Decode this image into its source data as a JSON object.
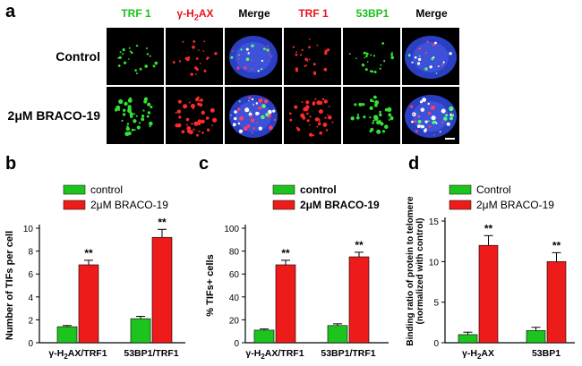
{
  "panel_a": {
    "letter": "a",
    "columns": [
      {
        "label": "TRF 1",
        "color": "#19c219"
      },
      {
        "label": "γ-H",
        "sub": "2",
        "label_tail": "AX",
        "color": "#e8141d"
      },
      {
        "label": "Merge",
        "color": "#000000"
      },
      {
        "label": "TRF 1",
        "color": "#e8141d"
      },
      {
        "label": "53BP1",
        "color": "#19c219"
      },
      {
        "label": "Merge",
        "color": "#000000"
      }
    ],
    "rows": [
      "Control",
      "2μM BRACO-19"
    ]
  },
  "chart_data": [
    {
      "type": "bar",
      "panel_letter": "b",
      "legend": [
        "control",
        "2μM BRACO-19"
      ],
      "categories": [
        {
          "main": "γ-H",
          "sub": "2",
          "tail": "AX/TRF1"
        },
        {
          "main": "53BP1/TRF1",
          "sub": "",
          "tail": ""
        }
      ],
      "series": [
        {
          "name": "control",
          "color": "#1ec41e",
          "values": [
            1.4,
            2.1
          ],
          "errors": [
            0.1,
            0.2
          ]
        },
        {
          "name": "2μM BRACO-19",
          "color": "#ee1b1b",
          "values": [
            6.8,
            9.2
          ],
          "errors": [
            0.4,
            0.7
          ]
        }
      ],
      "significance": [
        "**",
        "**"
      ],
      "ylabel": "Number of TIFs per cell",
      "ylim": [
        0,
        10
      ],
      "yticks": [
        "0",
        "2",
        "4",
        "6",
        "8",
        "10"
      ],
      "legend_bold": false
    },
    {
      "type": "bar",
      "panel_letter": "c",
      "legend": [
        "control",
        "2μM BRACO-19"
      ],
      "categories": [
        {
          "main": "γ-H",
          "sub": "2",
          "tail": "AX/TRF1"
        },
        {
          "main": "53BP1/TRF1",
          "sub": "",
          "tail": ""
        }
      ],
      "series": [
        {
          "name": "control",
          "color": "#1ec41e",
          "values": [
            11,
            15
          ],
          "errors": [
            1,
            1.5
          ]
        },
        {
          "name": "2μM BRACO-19",
          "color": "#ee1b1b",
          "values": [
            68,
            75
          ],
          "errors": [
            4,
            4
          ]
        }
      ],
      "significance": [
        "**",
        "**"
      ],
      "ylabel": "% TIFs+ cells",
      "ylim": [
        0,
        100
      ],
      "yticks": [
        "0",
        "20",
        "40",
        "60",
        "80",
        "100"
      ],
      "legend_bold": true
    },
    {
      "type": "bar",
      "panel_letter": "d",
      "legend": [
        "Control",
        "2μM BRACO-19"
      ],
      "categories": [
        {
          "main": "γ-H",
          "sub": "2",
          "tail": "AX"
        },
        {
          "main": "53BP1",
          "sub": "",
          "tail": ""
        }
      ],
      "series": [
        {
          "name": "Control",
          "color": "#1ec41e",
          "values": [
            1.0,
            1.5
          ],
          "errors": [
            0.3,
            0.4
          ]
        },
        {
          "name": "2μM BRACO-19",
          "color": "#ee1b1b",
          "values": [
            12.0,
            10.0
          ],
          "errors": [
            1.2,
            1.1
          ]
        }
      ],
      "significance": [
        "**",
        "**"
      ],
      "ylabel": "Binding ratio of protein to telomere",
      "ylabel2": "(normalized with control)",
      "ylim": [
        0,
        15
      ],
      "yticks": [
        "0",
        "5",
        "10",
        "15"
      ],
      "legend_bold": false
    }
  ]
}
